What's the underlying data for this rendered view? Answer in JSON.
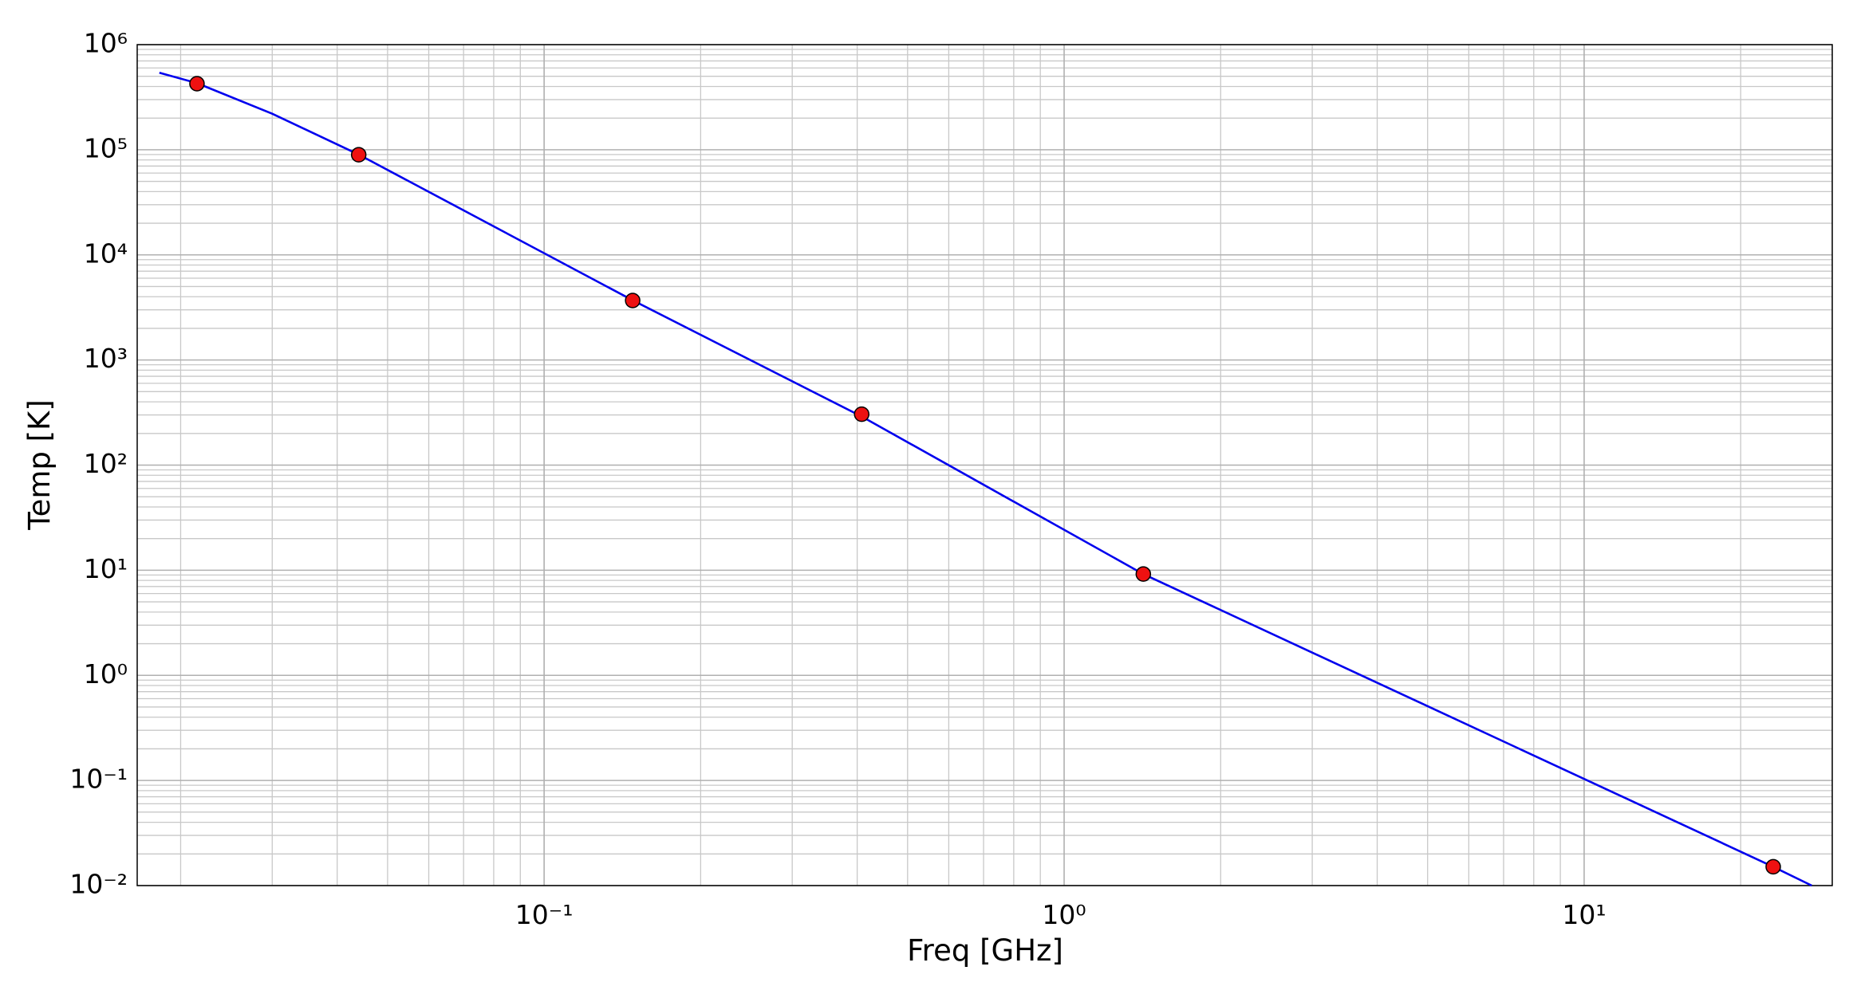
{
  "chart_data": {
    "type": "line-scatter",
    "xlabel": "Freq [GHz]",
    "ylabel": "Temp [K]",
    "xscale": "log",
    "yscale": "log",
    "grid": true,
    "xlim": [
      0.0165,
      30
    ],
    "ylim": [
      0.01,
      1000000
    ],
    "xticks": [
      {
        "value": 0.1,
        "label": "10⁻¹"
      },
      {
        "value": 1,
        "label": "10⁰"
      },
      {
        "value": 10,
        "label": "10¹"
      }
    ],
    "yticks": [
      {
        "value": 0.01,
        "label": "10⁻²"
      },
      {
        "value": 0.1,
        "label": "10⁻¹"
      },
      {
        "value": 1,
        "label": "10⁰"
      },
      {
        "value": 10,
        "label": "10¹"
      },
      {
        "value": 100,
        "label": "10²"
      },
      {
        "value": 1000,
        "label": "10³"
      },
      {
        "value": 10000,
        "label": "10⁴"
      },
      {
        "value": 100000,
        "label": "10⁵"
      },
      {
        "value": 1000000,
        "label": "10⁶"
      }
    ],
    "xminorticks": [
      0.02,
      0.03,
      0.04,
      0.05,
      0.06,
      0.07,
      0.08,
      0.09,
      0.2,
      0.3,
      0.4,
      0.5,
      0.6,
      0.7,
      0.8,
      0.9,
      2,
      3,
      4,
      5,
      6,
      7,
      8,
      9,
      20,
      30
    ],
    "yminorticks": [
      0.02,
      0.03,
      0.04,
      0.05,
      0.06,
      0.07,
      0.08,
      0.09,
      0.2,
      0.3,
      0.4,
      0.5,
      0.6,
      0.7,
      0.8,
      0.9,
      2,
      3,
      4,
      5,
      6,
      7,
      8,
      9,
      20,
      30,
      40,
      50,
      60,
      70,
      80,
      90,
      200,
      300,
      400,
      500,
      600,
      700,
      800,
      900,
      2000,
      3000,
      4000,
      5000,
      6000,
      7000,
      8000,
      9000,
      20000,
      30000,
      40000,
      50000,
      60000,
      70000,
      80000,
      90000,
      200000,
      300000,
      400000,
      500000,
      600000,
      700000,
      800000,
      900000
    ],
    "line": {
      "color": "#0000ee",
      "x": [
        0.0182,
        0.0215,
        0.03,
        0.044,
        0.148,
        0.408,
        1.42,
        23.1,
        27.4
      ],
      "values": [
        540000,
        430000,
        220000,
        90000,
        3700,
        290,
        9.2,
        0.0151,
        0.01
      ]
    },
    "points": {
      "color": "#ee1111",
      "x": [
        0.0215,
        0.044,
        0.148,
        0.408,
        1.42,
        23.1
      ],
      "values": [
        425000,
        89600,
        3680,
        305,
        9.2,
        0.0151
      ]
    }
  }
}
